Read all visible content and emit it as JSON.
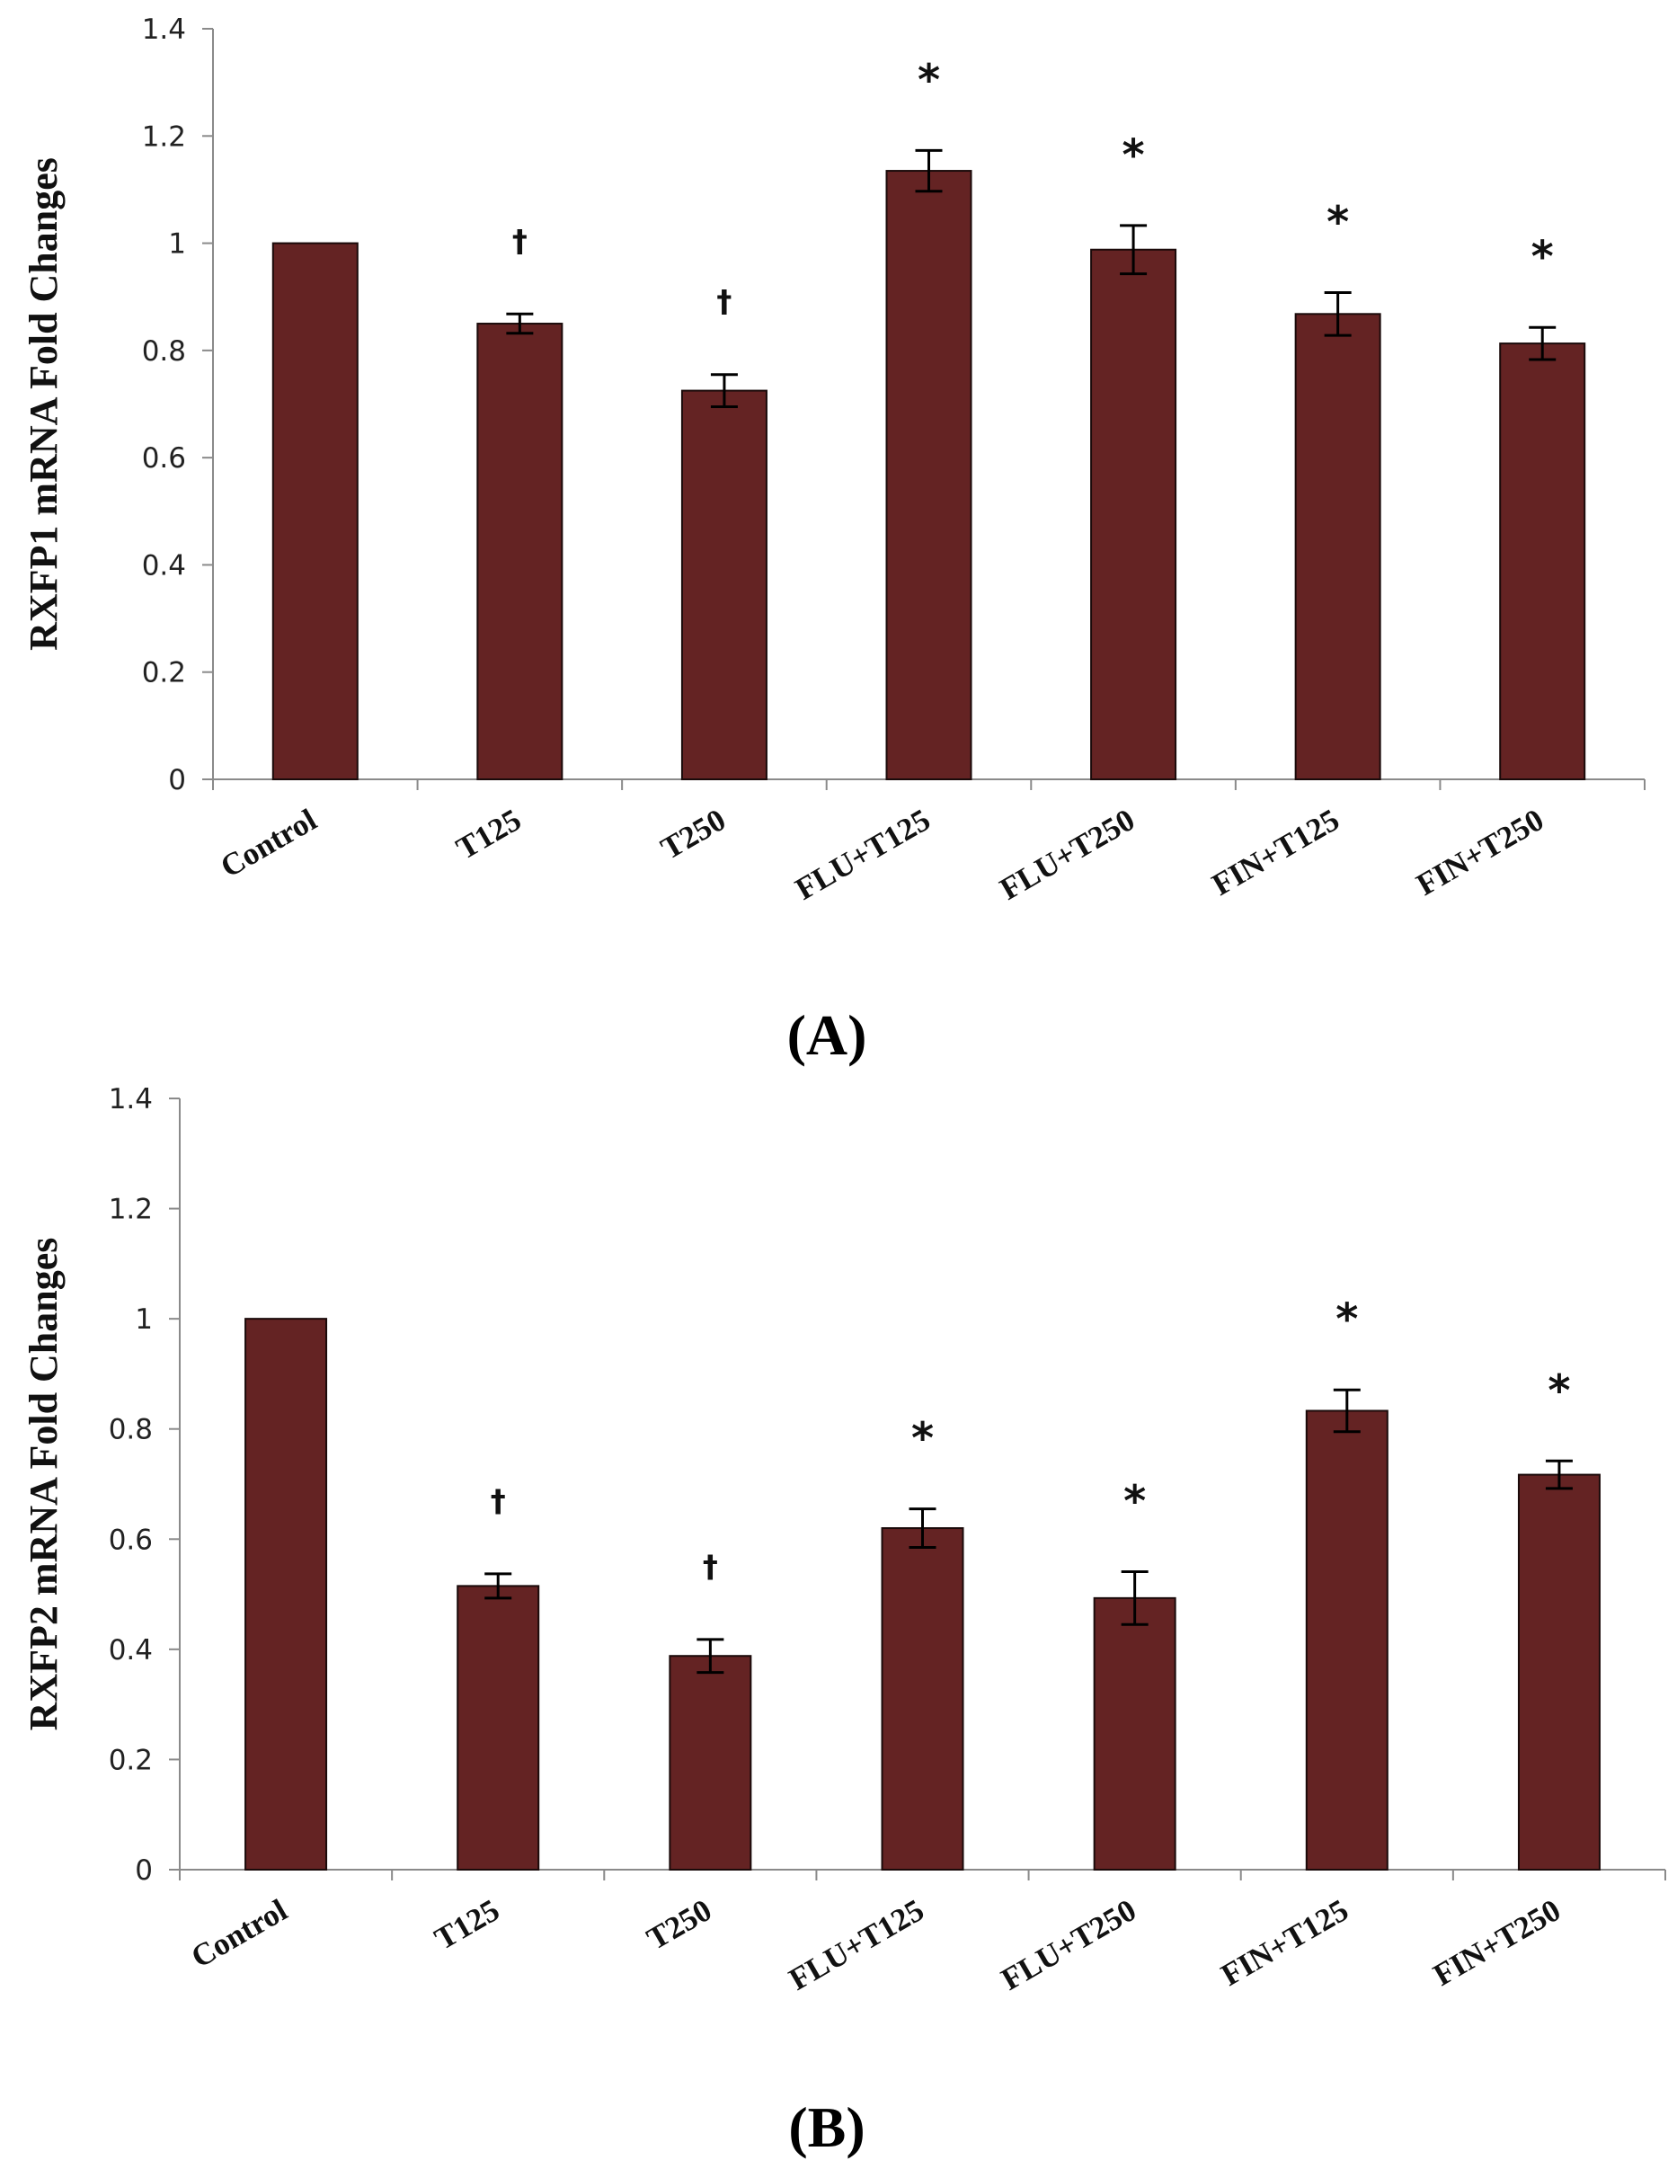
{
  "chart_data": [
    {
      "type": "bar",
      "panel_label": "(A)",
      "ylabel": "RXFP1  mRNA Fold Changes",
      "xlabel": "",
      "ylim": [
        0,
        1.4
      ],
      "yticks": [
        "0",
        "0.2",
        "0.4",
        "0.6",
        "0.8",
        "1",
        "1.2",
        "1.4"
      ],
      "categories": [
        "Control",
        "T125",
        "T250",
        "FLU+T125",
        "FLU+T250",
        "FIN+T125",
        "FIN+T250"
      ],
      "values": [
        1.0,
        0.85,
        0.725,
        1.135,
        0.988,
        0.868,
        0.813
      ],
      "errors": [
        0,
        0.018,
        0.03,
        0.038,
        0.045,
        0.04,
        0.03
      ],
      "annotations": [
        "",
        "†",
        "†",
        "*",
        "*",
        "*",
        "*"
      ],
      "bar_color": "#642323",
      "grid": false
    },
    {
      "type": "bar",
      "panel_label": "(B)",
      "ylabel": "RXFP2 mRNA Fold Changes",
      "xlabel": "",
      "ylim": [
        0,
        1.4
      ],
      "yticks": [
        "0",
        "0.2",
        "0.4",
        "0.6",
        "0.8",
        "1",
        "1.2",
        "1.4"
      ],
      "categories": [
        "Control",
        "T125",
        "T250",
        "FLU+T125",
        "FLU+T250",
        "FIN+T125",
        "FIN+T250"
      ],
      "values": [
        1.0,
        0.515,
        0.388,
        0.62,
        0.493,
        0.833,
        0.717
      ],
      "errors": [
        0,
        0.022,
        0.03,
        0.035,
        0.048,
        0.038,
        0.025
      ],
      "annotations": [
        "",
        "†",
        "†",
        "*",
        "*",
        "*",
        "*"
      ],
      "bar_color": "#642323",
      "grid": false
    }
  ]
}
